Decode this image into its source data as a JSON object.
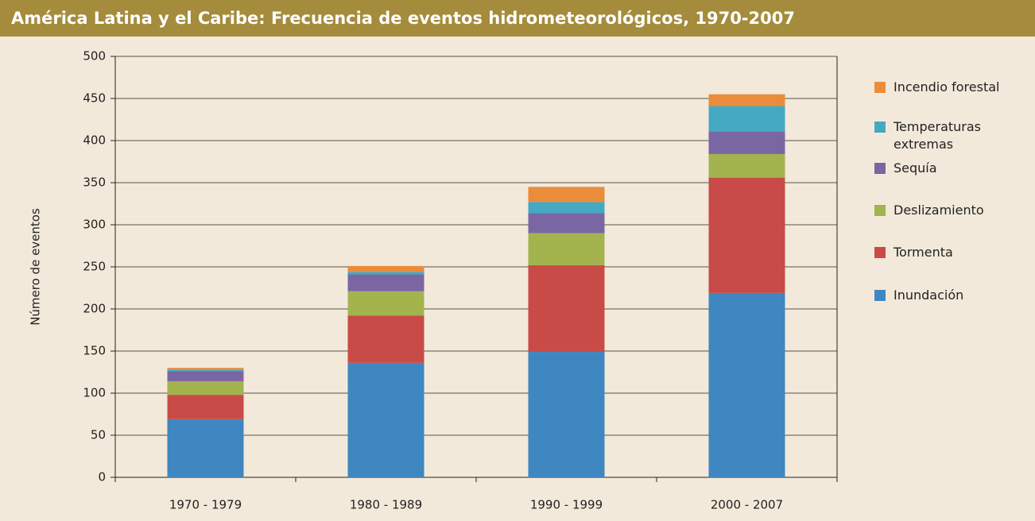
{
  "chart_data": {
    "type": "stacked-bar",
    "title": "América Latina y el Caribe: Frecuencia de eventos hidrometeorológicos, 1970-2007",
    "ylabel": "Número de eventos",
    "categories": [
      "1970  -  1979",
      "1980  -  1989",
      "1990  -  1999",
      "2000  -  2007"
    ],
    "series": [
      {
        "name": "Inundación",
        "color": "#3f87c0",
        "values": [
          69,
          136,
          149,
          219
        ]
      },
      {
        "name": "Tormenta",
        "color": "#c84b48",
        "values": [
          29,
          56,
          103,
          137
        ]
      },
      {
        "name": "Deslizamiento",
        "color": "#a3b34e",
        "values": [
          16,
          29,
          38,
          28
        ]
      },
      {
        "name": "Sequía",
        "color": "#7b66a4",
        "values": [
          12,
          20,
          24,
          27
        ]
      },
      {
        "name": "Temperaturas extremas",
        "color": "#45a9c4",
        "values": [
          2,
          3,
          13,
          30
        ]
      },
      {
        "name": "Incendio forestal",
        "color": "#ea8c3a",
        "values": [
          2,
          7,
          18,
          14
        ]
      }
    ],
    "ylim": [
      0,
      500
    ],
    "yticks": [
      0,
      50,
      100,
      150,
      200,
      250,
      300,
      350,
      400,
      450,
      500
    ],
    "grid": true
  }
}
